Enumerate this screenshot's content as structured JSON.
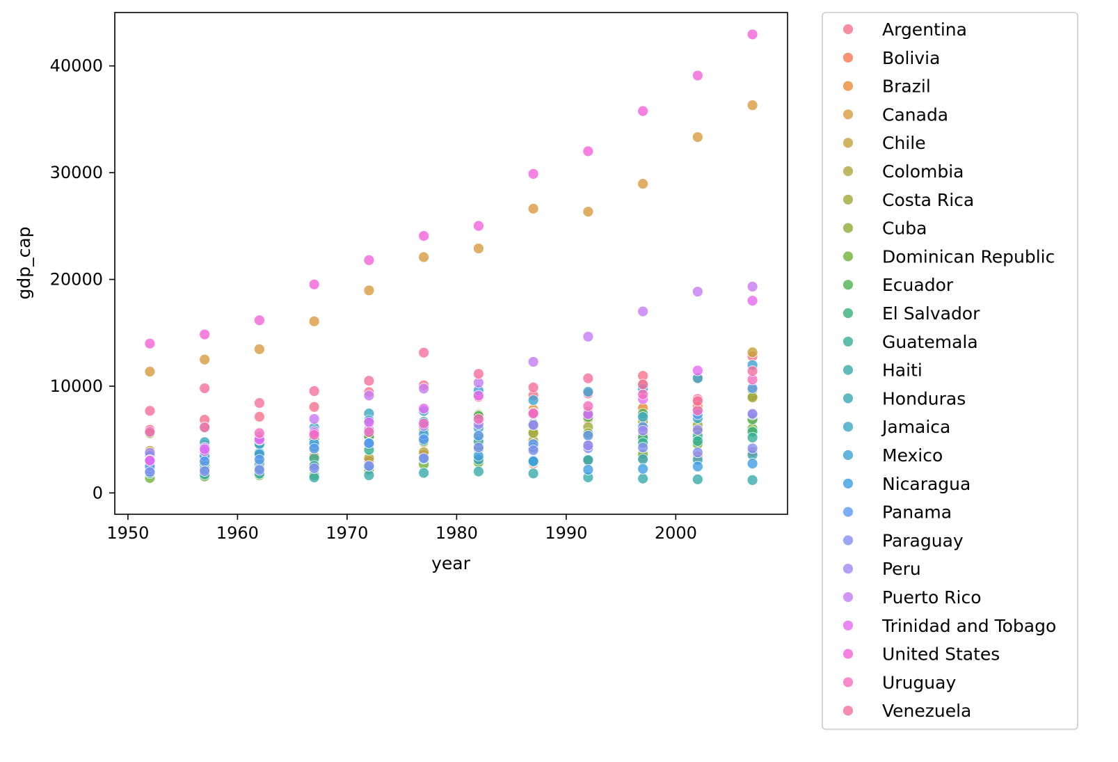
{
  "chart_data": {
    "type": "scatter",
    "title": "",
    "xlabel": "year",
    "ylabel": "gdp_cap",
    "xlim": [
      1948.8,
      2010.2
    ],
    "ylim": [
      -2000,
      45000
    ],
    "xticks": [
      1950,
      1960,
      1970,
      1980,
      1990,
      2000
    ],
    "yticks": [
      0,
      10000,
      20000,
      30000,
      40000
    ],
    "grid": false,
    "legend_position": "outside-right",
    "x": [
      1952,
      1957,
      1962,
      1967,
      1972,
      1977,
      1982,
      1987,
      1992,
      1997,
      2002,
      2007
    ],
    "series": [
      {
        "name": "Argentina",
        "color": "#f77189",
        "values": [
          5911,
          6857,
          7133,
          8053,
          9443,
          10079,
          8998,
          9140,
          9308,
          10967,
          8798,
          12779
        ]
      },
      {
        "name": "Bolivia",
        "color": "#f7754f",
        "values": [
          2677,
          2127,
          2181,
          2587,
          2980,
          3548,
          3157,
          2754,
          2962,
          3326,
          3413,
          3822
        ]
      },
      {
        "name": "Brazil",
        "color": "#e98a33",
        "values": [
          2109,
          2487,
          3337,
          3430,
          4986,
          6660,
          7031,
          7807,
          6950,
          7958,
          8131,
          9066
        ]
      },
      {
        "name": "Canada",
        "color": "#d89a3f",
        "values": [
          11367,
          12490,
          13462,
          16077,
          18971,
          22091,
          22899,
          26627,
          26343,
          28955,
          33329,
          36319
        ]
      },
      {
        "name": "Chile",
        "color": "#c5a13a",
        "values": [
          3940,
          4316,
          4519,
          5107,
          5494,
          4757,
          5096,
          5547,
          7596,
          10118,
          10779,
          13172
        ]
      },
      {
        "name": "Colombia",
        "color": "#b1a53d",
        "values": [
          2144,
          2324,
          2492,
          2679,
          3265,
          3816,
          4398,
          4903,
          5445,
          6117,
          5755,
          7007
        ]
      },
      {
        "name": "Costa Rica",
        "color": "#a0aa3a",
        "values": [
          2628,
          2990,
          3461,
          4162,
          5118,
          5927,
          5263,
          5630,
          6161,
          6677,
          7723,
          9645
        ]
      },
      {
        "name": "Cuba",
        "color": "#8ead3a",
        "values": [
          5587,
          6092,
          5181,
          5690,
          5305,
          6380,
          7317,
          7533,
          5593,
          5432,
          6341,
          8948
        ]
      },
      {
        "name": "Dominican Republic",
        "color": "#6fb23b",
        "values": [
          1398,
          1544,
          1662,
          1654,
          2190,
          2681,
          2862,
          2899,
          3045,
          3614,
          4564,
          6025
        ]
      },
      {
        "name": "Ecuador",
        "color": "#50b155",
        "values": [
          3522,
          4459,
          4579,
          4976,
          5281,
          6680,
          7213,
          6482,
          7104,
          7429,
          5773,
          6873
        ]
      },
      {
        "name": "El Salvador",
        "color": "#34b178",
        "values": [
          3048,
          3421,
          3777,
          4359,
          4520,
          5139,
          4099,
          4141,
          4444,
          5155,
          5352,
          5728
        ]
      },
      {
        "name": "Guatemala",
        "color": "#35ae93",
        "values": [
          2428,
          2617,
          2750,
          3243,
          4031,
          4880,
          4820,
          4246,
          4439,
          4685,
          4858,
          5186
        ]
      },
      {
        "name": "Haiti",
        "color": "#37abaa",
        "values": [
          1840,
          1727,
          1796,
          1452,
          1655,
          1875,
          2011,
          1823,
          1456,
          1342,
          1270,
          1202
        ]
      },
      {
        "name": "Honduras",
        "color": "#38a9b7",
        "values": [
          2195,
          2221,
          2292,
          2539,
          2529,
          3203,
          3122,
          3024,
          3082,
          3160,
          3099,
          3548
        ]
      },
      {
        "name": "Jamaica",
        "color": "#3aa7c4",
        "values": [
          2899,
          4757,
          5246,
          6125,
          7434,
          6650,
          6068,
          6351,
          7405,
          7122,
          6995,
          7321
        ]
      },
      {
        "name": "Mexico",
        "color": "#3ca3d3",
        "values": [
          3478,
          4132,
          4582,
          5755,
          6809,
          7675,
          9611,
          8688,
          9472,
          9767,
          10742,
          11978
        ]
      },
      {
        "name": "Nicaragua",
        "color": "#3f9fe2",
        "values": [
          3112,
          3458,
          3634,
          4643,
          4689,
          5486,
          3470,
          2955,
          2170,
          2253,
          2474,
          2749
        ]
      },
      {
        "name": "Panama",
        "color": "#5b9af2",
        "values": [
          2480,
          2962,
          3119,
          4161,
          4647,
          5027,
          5357,
          4573,
          5377,
          6173,
          7357,
          9809
        ]
      },
      {
        "name": "Paraguay",
        "color": "#8490f4",
        "values": [
          1952,
          2046,
          2149,
          2300,
          2523,
          3249,
          4258,
          3998,
          4196,
          4248,
          3784,
          4173
        ]
      },
      {
        "name": "Peru",
        "color": "#a387f4",
        "values": [
          3759,
          4246,
          4957,
          5788,
          5938,
          6281,
          6435,
          6361,
          4446,
          5838,
          5909,
          7409
        ]
      },
      {
        "name": "Puerto Rico",
        "color": "#c67cf3",
        "values": [
          3082,
          3908,
          5108,
          6930,
          9123,
          9771,
          10331,
          12281,
          14642,
          16999,
          18856,
          19329
        ]
      },
      {
        "name": "Trinidad and Tobago",
        "color": "#e569f3",
        "values": [
          3024,
          4100,
          4997,
          5621,
          6619,
          7899,
          9119,
          7389,
          7370,
          8793,
          11461,
          18009
        ]
      },
      {
        "name": "United States",
        "color": "#f263d9",
        "values": [
          13990,
          14847,
          16173,
          19531,
          21806,
          24073,
          25010,
          29884,
          32004,
          35767,
          39097,
          42952
        ]
      },
      {
        "name": "Uruguay",
        "color": "#f66bbd",
        "values": [
          5717,
          6151,
          5603,
          5445,
          5703,
          6504,
          6920,
          7452,
          8137,
          9230,
          7727,
          10611
        ]
      },
      {
        "name": "Venezuela",
        "color": "#f66e9d",
        "values": [
          7690,
          9802,
          8423,
          9541,
          10506,
          13144,
          11152,
          9883,
          10734,
          10166,
          8606,
          11416
        ]
      }
    ]
  }
}
